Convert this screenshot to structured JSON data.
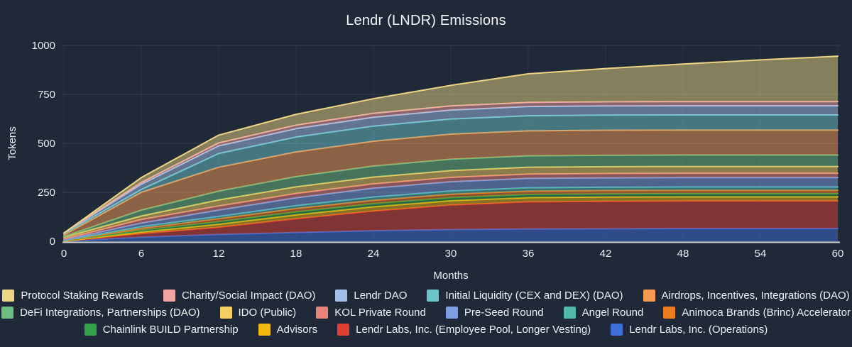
{
  "title": "Lendr (LNDR) Emissions",
  "colors": {
    "background": "#202938",
    "title_text": "#f3f5f8",
    "tick_text": "#e8ebf0",
    "axis_label_text": "#eceff3",
    "grid_line": "rgba(255,255,255,0.10)",
    "grid_line_vertical": "rgba(255,255,255,0.05)",
    "axis_line": "#ccd1d9"
  },
  "chart_data": {
    "type": "area",
    "stacked": true,
    "title": "Lendr (LNDR) Emissions",
    "xlabel": "Months",
    "ylabel": "Tokens",
    "x": [
      0,
      6,
      12,
      18,
      24,
      30,
      36,
      42,
      48,
      54,
      60
    ],
    "xticks": [
      0,
      6,
      12,
      18,
      24,
      30,
      36,
      42,
      48,
      54,
      60
    ],
    "yticks": [
      0,
      250,
      500,
      750,
      1000
    ],
    "ylim": [
      0,
      1000
    ],
    "xlim": [
      0,
      60
    ],
    "grid": true,
    "fill_opacity": 0.5,
    "legend_position": "bottom",
    "series": [
      {
        "name": "Lendr Labs, Inc. (Operations)",
        "color": "#3e6fd9",
        "values": [
          0,
          21,
          35,
          45,
          54,
          60,
          63,
          64,
          65,
          65,
          65
        ]
      },
      {
        "name": "Lendr Labs, Inc. (Employee Pool, Longer Vesting)",
        "color": "#df4030",
        "values": [
          0,
          18,
          36,
          70,
          100,
          125,
          138,
          140,
          140,
          140,
          140
        ]
      },
      {
        "name": "Advisors",
        "color": "#f0b90f",
        "values": [
          0,
          8,
          16,
          20,
          22,
          22,
          22,
          22,
          22,
          22,
          22
        ]
      },
      {
        "name": "Chainlink BUILD Partnership",
        "color": "#34a049",
        "values": [
          2,
          10,
          13,
          15,
          16,
          16,
          16,
          16,
          16,
          16,
          16
        ]
      },
      {
        "name": "Animoca Brands (Brinc) Accelerator",
        "color": "#ef7d1f",
        "values": [
          0,
          9,
          15,
          17,
          17,
          17,
          17,
          17,
          17,
          17,
          17
        ]
      },
      {
        "name": "Angel Round",
        "color": "#52b8ac",
        "values": [
          2,
          9,
          12,
          15,
          17,
          17,
          17,
          17,
          17,
          17,
          17
        ]
      },
      {
        "name": "Pre-Seed Round",
        "color": "#7d9fe0",
        "values": [
          3,
          18,
          32,
          40,
          45,
          47,
          48,
          48,
          48,
          48,
          48
        ]
      },
      {
        "name": "KOL Private Round",
        "color": "#e8827a",
        "values": [
          5,
          18,
          21,
          22,
          22,
          22,
          22,
          22,
          22,
          22,
          22
        ]
      },
      {
        "name": "IDO (Public)",
        "color": "#f5d060",
        "values": [
          9,
          18,
          31,
          34,
          35,
          35,
          35,
          35,
          35,
          35,
          35
        ]
      },
      {
        "name": "DeFi Integrations, Partnerships (DAO)",
        "color": "#6dbd80",
        "values": [
          3,
          30,
          45,
          52,
          56,
          58,
          58,
          58,
          58,
          58,
          58
        ]
      },
      {
        "name": "Airdrops, Incentives, Integrations (DAO)",
        "color": "#f59b51",
        "values": [
          8,
          91,
          122,
          126,
          127,
          128,
          128,
          128,
          128,
          128,
          128
        ]
      },
      {
        "name": "Initial Liquidity (CEX and DEX) (DAO)",
        "color": "#6cc5c9",
        "values": [
          8,
          14,
          70,
          76,
          77,
          77,
          77,
          77,
          77,
          77,
          77
        ]
      },
      {
        "name": "Lendr DAO",
        "color": "#a3c1e8",
        "values": [
          2,
          27,
          39,
          43,
          45,
          46,
          47,
          47,
          47,
          47,
          47
        ]
      },
      {
        "name": "Charity/Social Impact (DAO)",
        "color": "#f2a4a4",
        "values": [
          0,
          9,
          15,
          18,
          20,
          21,
          21,
          21,
          21,
          21,
          21
        ]
      },
      {
        "name": "Protocol Staking Rewards",
        "color": "#ecd584",
        "values": [
          0,
          25,
          40,
          55,
          75,
          105,
          146,
          170,
          192,
          213,
          232
        ]
      }
    ],
    "legend_rows": [
      [
        "Protocol Staking Rewards",
        "Charity/Social Impact (DAO)",
        "Lendr DAO",
        "Initial Liquidity (CEX and DEX) (DAO)",
        "Airdrops, Incentives, Integrations (DAO)"
      ],
      [
        "DeFi Integrations, Partnerships (DAO)",
        "IDO (Public)",
        "KOL Private Round",
        "Pre-Seed Round",
        "Angel Round",
        "Animoca Brands (Brinc) Accelerator"
      ],
      [
        "Chainlink BUILD Partnership",
        "Advisors",
        "Lendr Labs, Inc. (Employee Pool, Longer Vesting)",
        "Lendr Labs, Inc. (Operations)"
      ]
    ]
  }
}
